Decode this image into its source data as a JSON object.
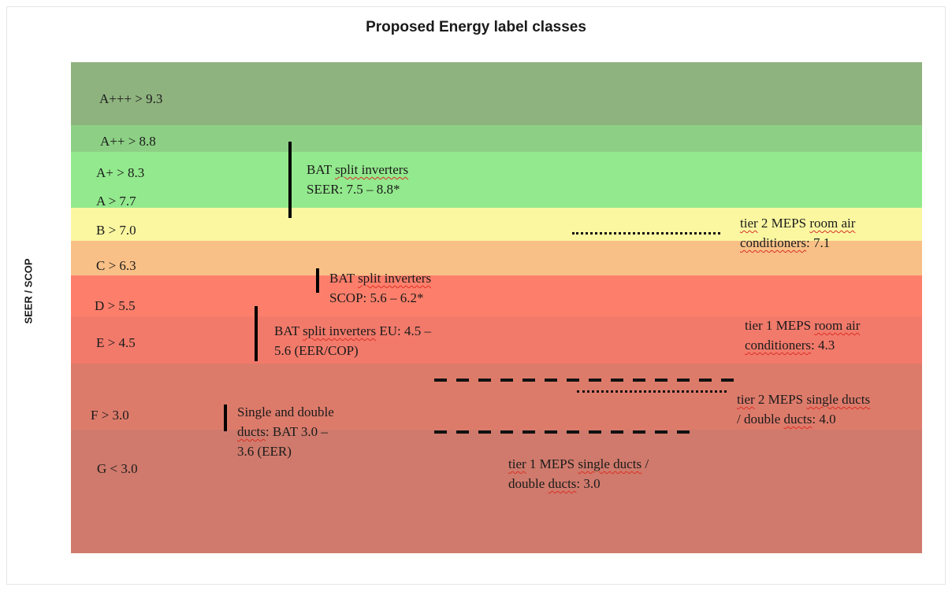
{
  "title": "Proposed Energy label classes",
  "y_axis_label": "SEER / SCOP",
  "classes": [
    {
      "label": "A+++ > 9.3",
      "color": "#8fb37f"
    },
    {
      "label": "A++ > 8.8",
      "color": "#8dd085"
    },
    {
      "label": "A+ > 8.3",
      "color": "#93e98d"
    },
    {
      "label": "A > 7.7",
      "color": "#93e98d"
    },
    {
      "label": "B > 7.0",
      "color": "#fbf7a1"
    },
    {
      "label": "C > 6.3",
      "color": "#f8c087"
    },
    {
      "label": "D > 5.5",
      "color": "#fd7f6b"
    },
    {
      "label": "E > 4.5",
      "color": "#f27a6b"
    },
    {
      "label": "F > 3.0",
      "color": "#dd7b6b"
    },
    {
      "label": "G < 3.0",
      "color": "#cf7a6c"
    }
  ],
  "annotations": {
    "bat_split_seer": {
      "line1_a": "BAT ",
      "line1_b": "split inverters",
      "line2": "SEER: 7.5 – 8.8*"
    },
    "bat_split_scop": {
      "line1_a": "BAT ",
      "line1_b": "split inverters",
      "line2": "SCOP: 5.6 – 6.2*"
    },
    "bat_split_eu": {
      "line1_a": "BAT ",
      "line1_b": "split inverters",
      "line1_c": " EU: 4.5 –",
      "line2": "5.6 (EER/COP)"
    },
    "ducts_bat": {
      "line1": "Single and double",
      "line2_a": "ducts",
      "line2_b": ": BAT 3.0 –",
      "line3": "3.6 (EER)"
    },
    "tier2_room": {
      "line1_a": "tier",
      "line1_b": " 2 MEPS ",
      "line1_c": "room air",
      "line2_a": "conditioners",
      "line2_b": ": 7.1"
    },
    "tier1_room": {
      "line1_a": "tier 1 MEPS ",
      "line1_b": "room air",
      "line2_a": "conditioners",
      "line2_b": ": 4.3"
    },
    "tier2_ducts": {
      "line1_a": "tier",
      "line1_b": " 2 MEPS ",
      "line1_c": "single ducts",
      "line2_a": "/ double ",
      "line2_b": "ducts",
      "line2_c": ": 4.0"
    },
    "tier1_ducts": {
      "line1_a": "tier",
      "line1_b": " 1 MEPS ",
      "line1_c": "single ducts",
      "line1_d": " /",
      "line2_a": "double ",
      "line2_b": "ducts",
      "line2_c": ": 3.0"
    }
  }
}
